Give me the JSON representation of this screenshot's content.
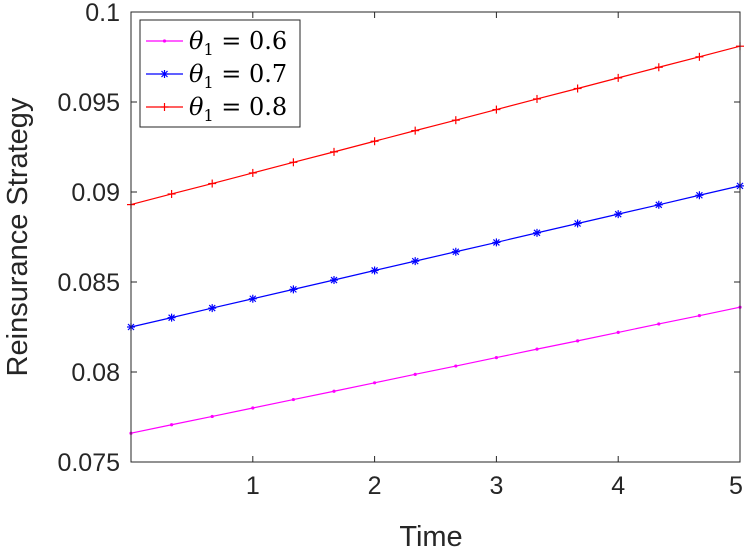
{
  "chart_data": {
    "type": "line",
    "xlabel": "Time",
    "ylabel": "Reinsurance Strategy",
    "xlim": [
      0,
      5
    ],
    "ylim": [
      0.075,
      0.1
    ],
    "xticks": [
      1,
      2,
      3,
      4,
      5
    ],
    "xtick_labels": [
      "1",
      "2",
      "3",
      "4",
      "5"
    ],
    "yticks": [
      0.075,
      0.08,
      0.085,
      0.09,
      0.095,
      0.1
    ],
    "ytick_labels": [
      "0.075",
      "0.08",
      "0.085",
      "0.09",
      "0.095",
      "0.1"
    ],
    "grid": false,
    "legend_position": "top-left",
    "series": [
      {
        "name": "θ1 = 0.6",
        "legend": {
          "var": "θ",
          "sub": "1",
          "rest": " = 0.6"
        },
        "color": "#ff00ff",
        "marker": "point",
        "x": [
          0,
          0.3333,
          0.6667,
          1,
          1.3333,
          1.6667,
          2,
          2.3333,
          2.6667,
          3,
          3.3333,
          3.6667,
          4,
          4.3333,
          4.6667,
          5
        ],
        "y": [
          0.0766,
          0.07707,
          0.07753,
          0.078,
          0.07847,
          0.07893,
          0.0794,
          0.07987,
          0.08033,
          0.0808,
          0.08127,
          0.08173,
          0.0822,
          0.08267,
          0.08313,
          0.0836
        ]
      },
      {
        "name": "θ1 = 0.7",
        "legend": {
          "var": "θ",
          "sub": "1",
          "rest": " = 0.7"
        },
        "color": "#0000ff",
        "marker": "star",
        "x": [
          0,
          0.3333,
          0.6667,
          1,
          1.3333,
          1.6667,
          2,
          2.3333,
          2.6667,
          3,
          3.3333,
          3.6667,
          4,
          4.3333,
          4.6667,
          5
        ],
        "y": [
          0.0825,
          0.08302,
          0.08355,
          0.08407,
          0.08459,
          0.08511,
          0.08564,
          0.08616,
          0.08668,
          0.0872,
          0.08773,
          0.08825,
          0.08877,
          0.08929,
          0.08982,
          0.09034
        ]
      },
      {
        "name": "θ1 = 0.8",
        "legend": {
          "var": "θ",
          "sub": "1",
          "rest": " = 0.8"
        },
        "color": "#ff0000",
        "marker": "plus",
        "x": [
          0,
          0.3333,
          0.6667,
          1,
          1.3333,
          1.6667,
          2,
          2.3333,
          2.6667,
          3,
          3.3333,
          3.6667,
          4,
          4.3333,
          4.6667,
          5
        ],
        "y": [
          0.0893,
          0.08989,
          0.09047,
          0.09106,
          0.09165,
          0.09223,
          0.09282,
          0.09341,
          0.09399,
          0.09458,
          0.09517,
          0.09575,
          0.09634,
          0.09693,
          0.09751,
          0.0981
        ]
      }
    ]
  }
}
